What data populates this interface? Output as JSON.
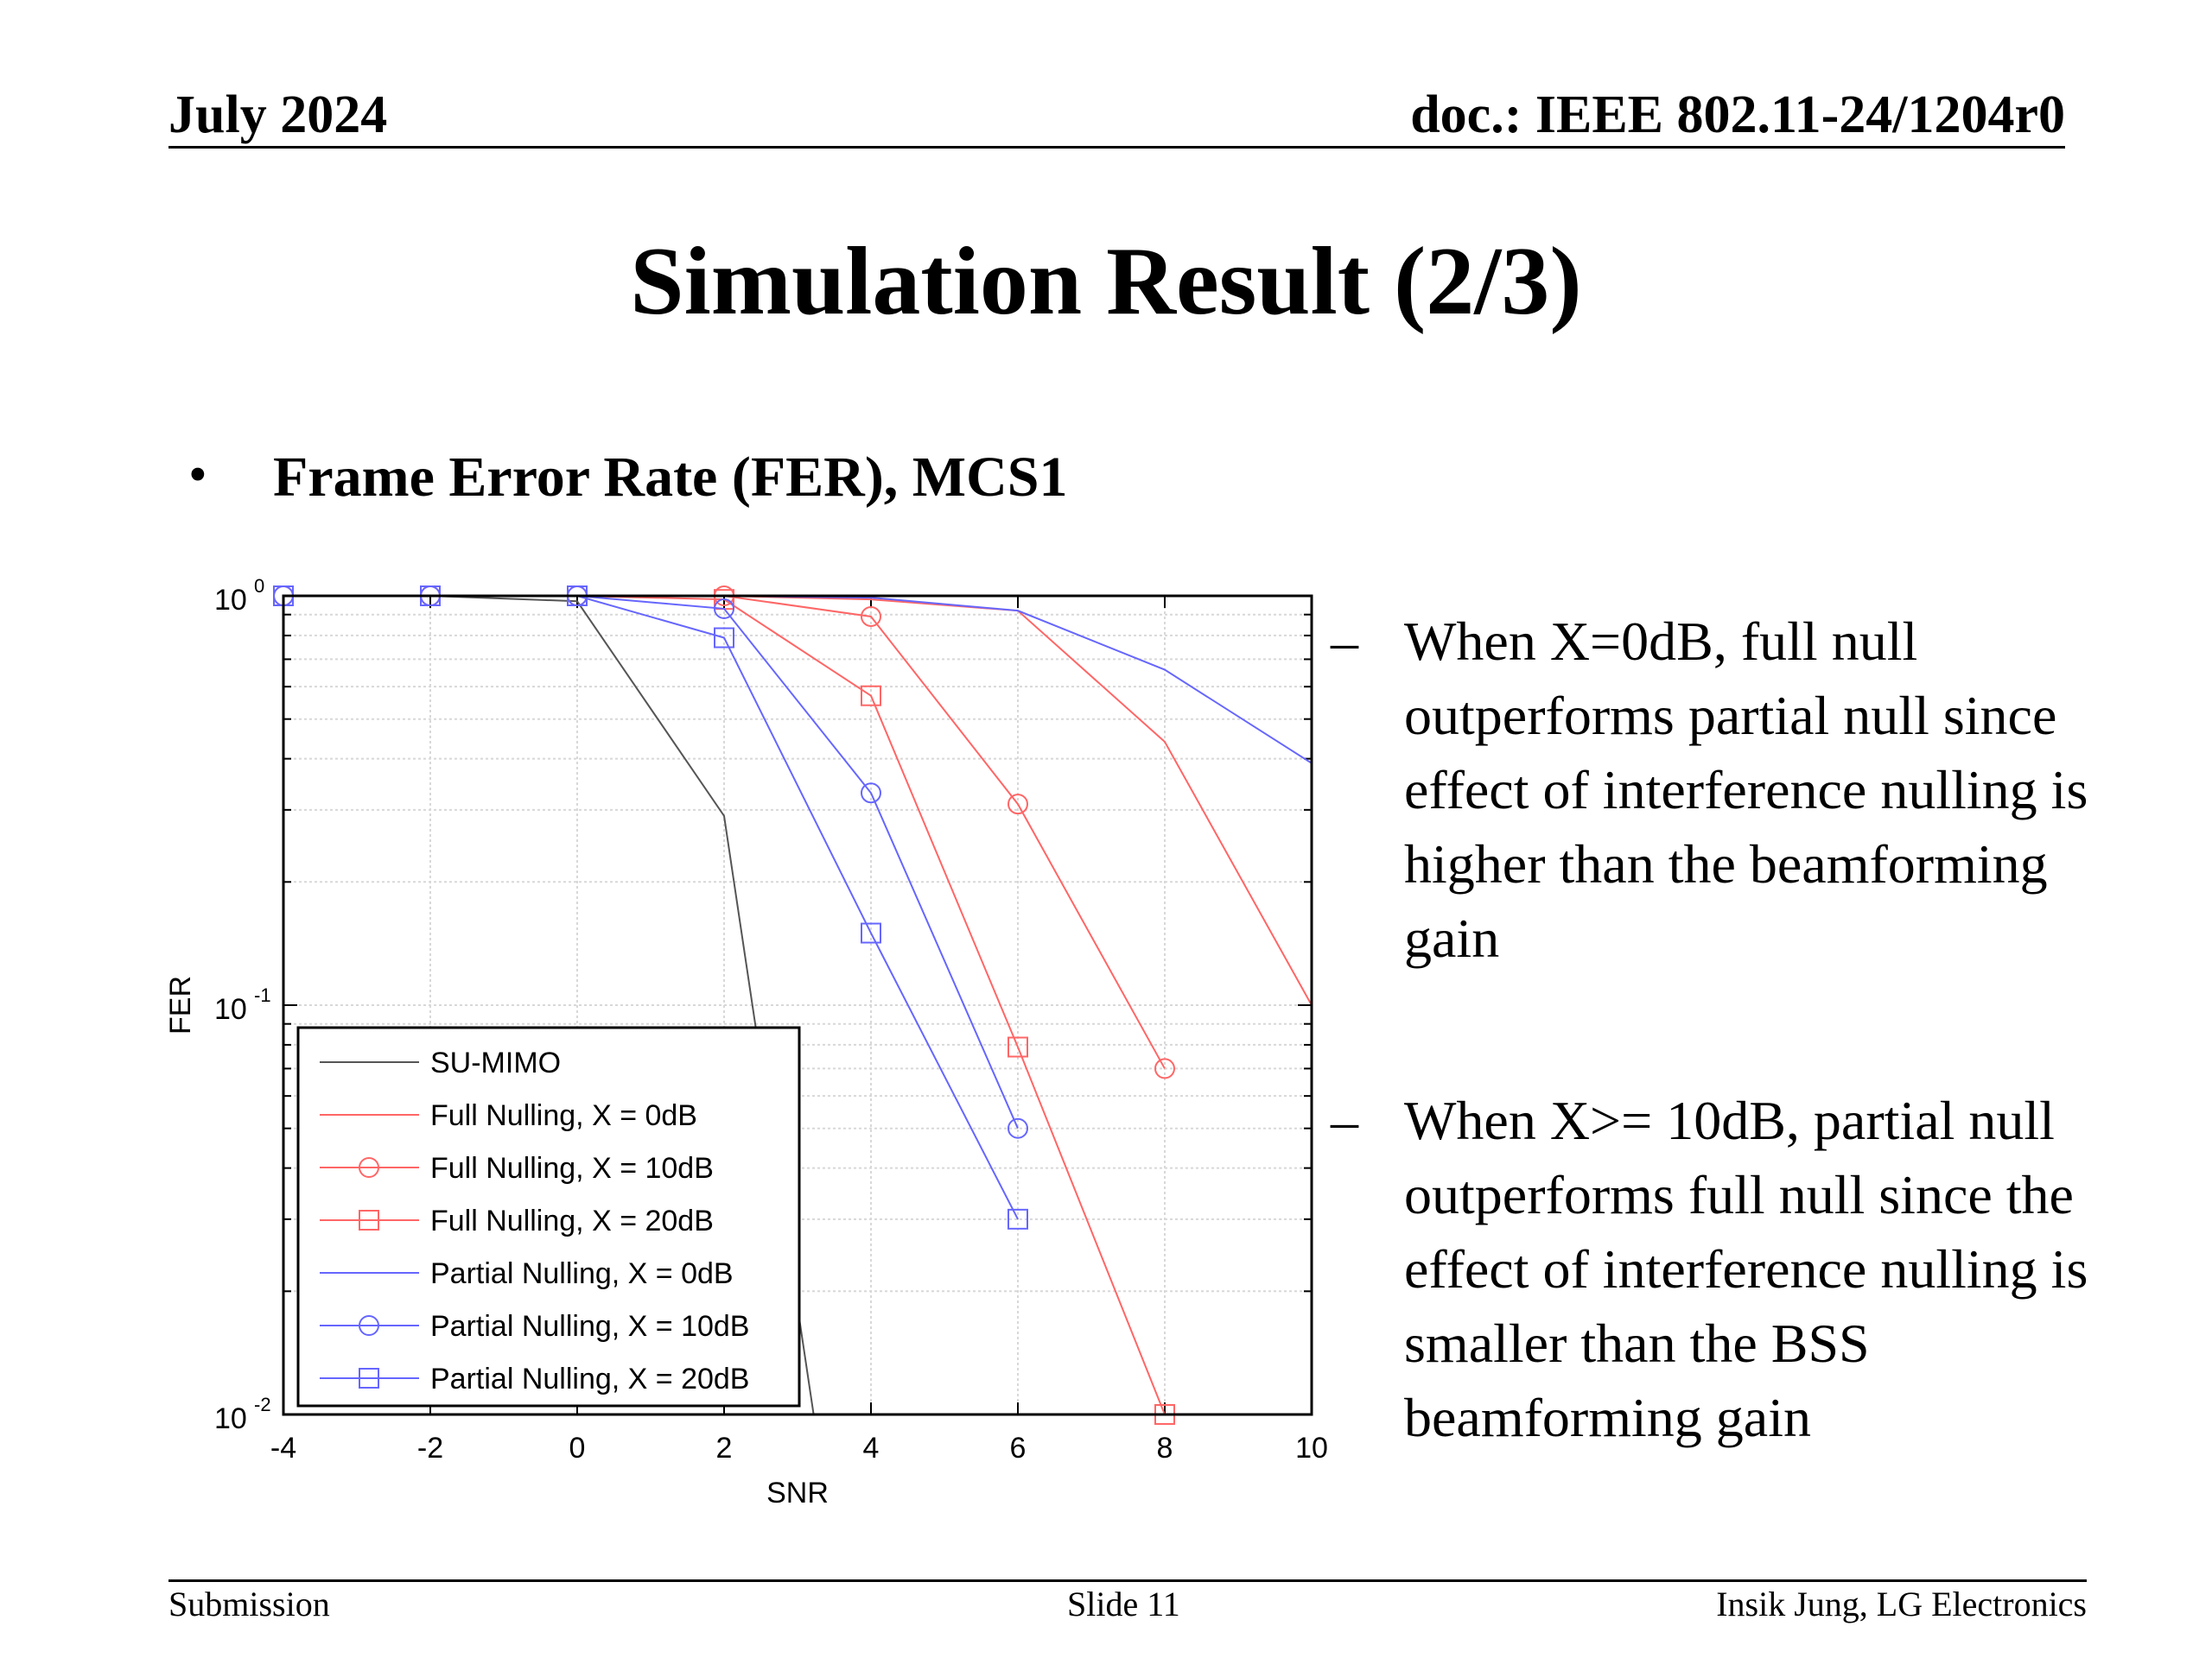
{
  "header": {
    "date": "July 2024",
    "doc": "doc.: IEEE 802.11-24/1204r0"
  },
  "title": "Simulation Result (2/3)",
  "bullet": "Frame Error Rate (FER), MCS1",
  "notes": [
    {
      "dash": "–",
      "lines": [
        "When X=0dB, full null",
        "outperforms partial null since",
        "effect of interference nulling is",
        "higher than the beamforming",
        "gain"
      ]
    },
    {
      "dash": "–",
      "lines": [
        "When X>= 10dB, partial null",
        "outperforms full null since the",
        "effect of interference nulling is",
        "smaller than the BSS",
        "beamforming gain"
      ]
    }
  ],
  "footer": {
    "left": "Submission",
    "center": "Slide 11",
    "right": "Insik Jung, LG Electronics"
  },
  "chart_data": {
    "type": "line",
    "xlabel": "SNR",
    "ylabel": "FER",
    "xlim": [
      -4,
      10
    ],
    "ylim": [
      0.01,
      1
    ],
    "yscale": "log",
    "xticks": [
      "-4",
      "-2",
      "0",
      "2",
      "4",
      "6",
      "8",
      "10"
    ],
    "yticks": [
      {
        "value": 1,
        "base": "10",
        "exp": "0"
      },
      {
        "value": 0.1,
        "base": "10",
        "exp": "-1"
      },
      {
        "value": 0.01,
        "base": "10",
        "exp": "-2"
      }
    ],
    "grid": true,
    "legend_position": "bottom-left",
    "series": [
      {
        "name": "SU-MIMO",
        "color": "#555555",
        "marker": "none",
        "points": [
          [
            -4,
            1
          ],
          [
            -2,
            1
          ],
          [
            0,
            0.97
          ],
          [
            2,
            0.29
          ],
          [
            3.3,
            0.008
          ]
        ]
      },
      {
        "name": "Full Nulling, X = 0dB",
        "color": "#ff6666",
        "marker": "none",
        "points": [
          [
            -4,
            1
          ],
          [
            -2,
            1
          ],
          [
            0,
            1
          ],
          [
            2,
            1
          ],
          [
            4,
            0.98
          ],
          [
            6,
            0.92
          ],
          [
            8,
            0.44
          ],
          [
            10,
            0.1
          ]
        ]
      },
      {
        "name": "Full Nulling, X = 10dB",
        "color": "#ff6666",
        "marker": "circle",
        "points": [
          [
            -4,
            1
          ],
          [
            -2,
            1
          ],
          [
            0,
            1
          ],
          [
            2,
            1
          ],
          [
            4,
            0.89
          ],
          [
            6,
            0.31
          ],
          [
            8,
            0.07
          ]
        ]
      },
      {
        "name": "Full Nulling, X = 20dB",
        "color": "#ff6666",
        "marker": "square",
        "points": [
          [
            -4,
            1
          ],
          [
            -2,
            1
          ],
          [
            0,
            1
          ],
          [
            2,
            0.98
          ],
          [
            4,
            0.57
          ],
          [
            6,
            0.079
          ],
          [
            8,
            0.01
          ]
        ]
      },
      {
        "name": "Partial Nulling, X = 0dB",
        "color": "#6666ff",
        "marker": "none",
        "points": [
          [
            -4,
            1
          ],
          [
            -2,
            1
          ],
          [
            0,
            1
          ],
          [
            2,
            1
          ],
          [
            4,
            0.99
          ],
          [
            6,
            0.92
          ],
          [
            8,
            0.66
          ],
          [
            10,
            0.39
          ]
        ]
      },
      {
        "name": "Partial Nulling, X = 10dB",
        "color": "#6666ff",
        "marker": "circle",
        "points": [
          [
            -4,
            1
          ],
          [
            -2,
            1
          ],
          [
            0,
            1
          ],
          [
            2,
            0.93
          ],
          [
            4,
            0.33
          ],
          [
            6,
            0.05
          ]
        ]
      },
      {
        "name": "Partial Nulling, X = 20dB",
        "color": "#6666ff",
        "marker": "square",
        "points": [
          [
            -4,
            1
          ],
          [
            -2,
            1
          ],
          [
            0,
            1
          ],
          [
            2,
            0.79
          ],
          [
            4,
            0.15
          ],
          [
            6,
            0.03
          ]
        ]
      }
    ]
  }
}
